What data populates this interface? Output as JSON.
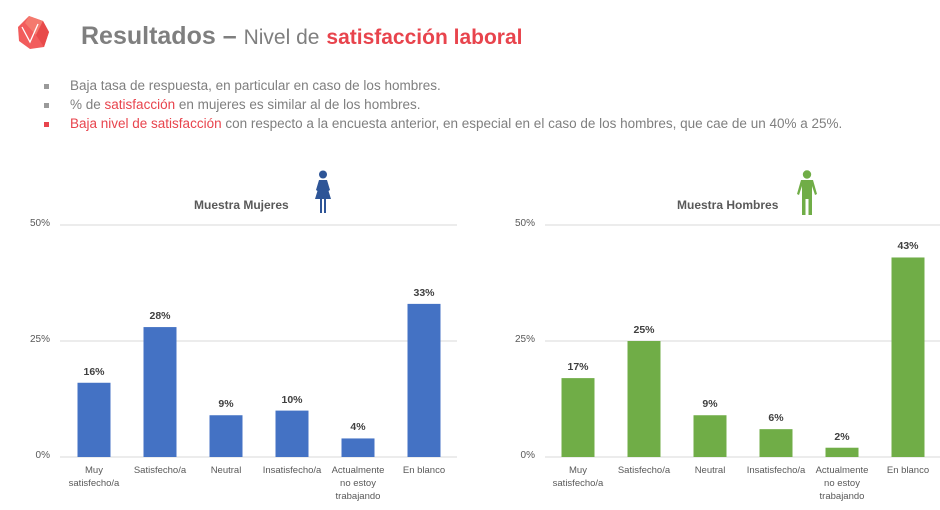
{
  "header": {
    "title_main": "Resultados –",
    "title_sub": "Nivel de",
    "title_accent": "satisfacción laboral"
  },
  "bullets": [
    {
      "text": "Baja tasa de respuesta, en particular en caso de los hombres."
    },
    {
      "prefix": "% de",
      "highlight": "satisfacción",
      "suffix": "en mujeres es similar al de los hombres."
    },
    {
      "highlight": "Baja nivel de satisfacción",
      "suffix": "con respecto a la encuesta anterior, en especial en el caso de los hombres, que cae de un 40% a 25%."
    }
  ],
  "colors": {
    "accent": "#e8444d",
    "women": "#4472c4",
    "men": "#70ad47",
    "women_icon": "#2e5597",
    "men_icon": "#70ad47"
  },
  "chart_data": [
    {
      "type": "bar",
      "title": "Muestra Mujeres",
      "icon": "woman-icon",
      "categories": [
        "Muy satisfecho/a",
        "Satisfecho/a",
        "Neutral",
        "Insatisfecho/a",
        "Actualmente no estoy trabajando",
        "En blanco"
      ],
      "category_lines": [
        [
          "Muy",
          "satisfecho/a"
        ],
        [
          "Satisfecho/a"
        ],
        [
          "Neutral"
        ],
        [
          "Insatisfecho/a"
        ],
        [
          "Actualmente",
          "no estoy",
          "trabajando"
        ],
        [
          "En blanco"
        ]
      ],
      "values": [
        16,
        28,
        9,
        10,
        4,
        33
      ],
      "labels": [
        "16%",
        "28%",
        "9%",
        "10%",
        "4%",
        "33%"
      ],
      "yticks": [
        "0%",
        "25%",
        "50%"
      ],
      "ytick_values": [
        0,
        25,
        50
      ],
      "ylim": [
        0,
        50
      ],
      "grid": true,
      "xlabel": "",
      "ylabel": ""
    },
    {
      "type": "bar",
      "title": "Muestra Hombres",
      "icon": "man-icon",
      "categories": [
        "Muy satisfecho/a",
        "Satisfecho/a",
        "Neutral",
        "Insatisfecho/a",
        "Actualmente no estoy trabajando",
        "En blanco"
      ],
      "category_lines": [
        [
          "Muy",
          "satisfecho/a"
        ],
        [
          "Satisfecho/a"
        ],
        [
          "Neutral"
        ],
        [
          "Insatisfecho/a"
        ],
        [
          "Actualmente",
          "no estoy",
          "trabajando"
        ],
        [
          "En blanco"
        ]
      ],
      "values": [
        17,
        25,
        9,
        6,
        2,
        43
      ],
      "labels": [
        "17%",
        "25%",
        "9%",
        "6%",
        "2%",
        "43%"
      ],
      "yticks": [
        "0%",
        "25%",
        "50%"
      ],
      "ytick_values": [
        0,
        25,
        50
      ],
      "ylim": [
        0,
        50
      ],
      "grid": true,
      "xlabel": "",
      "ylabel": ""
    }
  ]
}
